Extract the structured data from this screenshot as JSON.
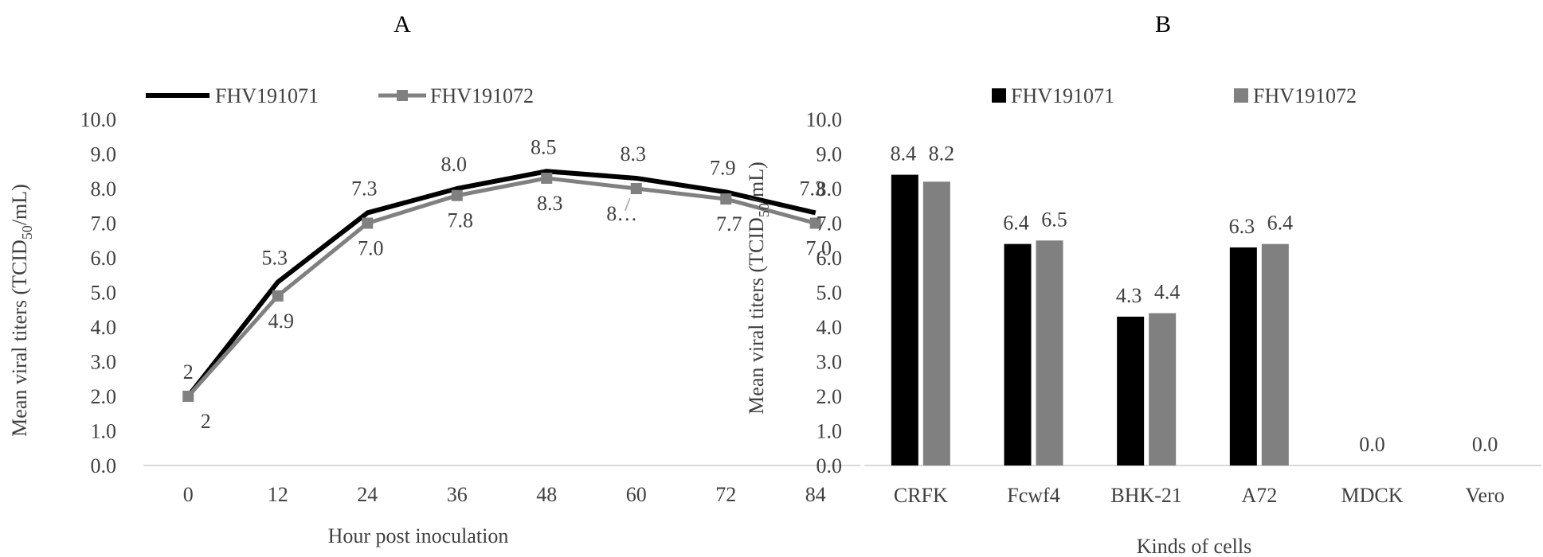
{
  "chart_data": [
    {
      "panel": "A",
      "type": "line",
      "title": "",
      "xlabel": "Hour post inoculation",
      "ylabel_main": "Mean viral titers (TCID",
      "ylabel_sub": "50",
      "ylabel_tail": "/mL)",
      "categories": [
        "0",
        "12",
        "24",
        "36",
        "48",
        "60",
        "72",
        "84"
      ],
      "ylim": [
        0,
        10
      ],
      "ytick_step": 1,
      "ytick_labels": [
        "0.0",
        "1.0",
        "2.0",
        "3.0",
        "4.0",
        "5.0",
        "6.0",
        "7.0",
        "8.0",
        "9.0",
        "10.0"
      ],
      "legend_position": "top-left",
      "series": [
        {
          "name": "FHV191071",
          "color": "#000000",
          "values": [
            2.0,
            5.3,
            7.3,
            8.0,
            8.5,
            8.3,
            7.9,
            7.3
          ],
          "labels": [
            "2",
            "5.3",
            "7.3",
            "8.0",
            "8.5",
            "8.3",
            "7.9",
            "7.3"
          ]
        },
        {
          "name": "FHV191072",
          "color": "#808080",
          "values": [
            2.0,
            4.9,
            7.0,
            7.8,
            8.3,
            8.0,
            7.7,
            7.0
          ],
          "labels": [
            "2",
            "4.9",
            "7.0",
            "7.8",
            "8.3",
            "8…",
            "7.7",
            "7.0"
          ]
        }
      ]
    },
    {
      "panel": "B",
      "type": "bar",
      "title": "",
      "xlabel": "Kinds of cells",
      "ylabel_main": "Mean viral titers (TCID",
      "ylabel_sub": "50",
      "ylabel_tail": "/mL)",
      "categories": [
        "CRFK",
        "Fcwf4",
        "BHK-21",
        "A72",
        "MDCK",
        "Vero"
      ],
      "ylim": [
        0,
        10
      ],
      "ytick_step": 1,
      "ytick_labels": [
        "0.0",
        "1.0",
        "2.0",
        "3.0",
        "4.0",
        "5.0",
        "6.0",
        "7.0",
        "8.0",
        "9.0",
        "10.0"
      ],
      "legend_position": "top-right",
      "series": [
        {
          "name": "FHV191071",
          "color": "#000000",
          "values": [
            8.4,
            6.4,
            4.3,
            6.3,
            0.0,
            0.0
          ],
          "labels": [
            "8.4",
            "6.4",
            "4.3",
            "6.3",
            "0.0",
            "0.0"
          ]
        },
        {
          "name": "FHV191072",
          "color": "#808080",
          "values": [
            8.2,
            6.5,
            4.4,
            6.4,
            null,
            null
          ],
          "labels": [
            "8.2",
            "6.5",
            "4.4",
            "6.4",
            "",
            ""
          ]
        }
      ]
    }
  ]
}
